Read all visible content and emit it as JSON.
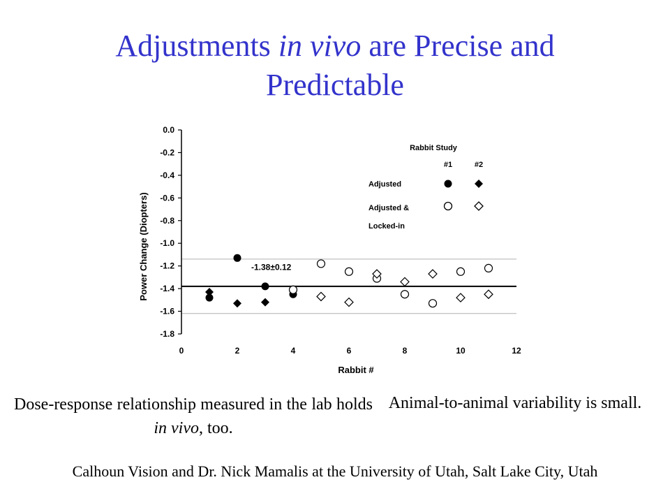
{
  "slide": {
    "title_part1": "Adjustments ",
    "title_italic": "in vivo",
    "title_part2": " are Precise and",
    "title_line2": "Predictable",
    "caption_left_part1": "Dose-response relationship measured in the lab holds ",
    "caption_left_italic": "in vivo",
    "caption_left_part2": ", too.",
    "caption_right": "Animal-to-animal variability is small.",
    "credit": "Calhoun Vision and Dr. Nick Mamalis at the University of Utah, Salt Lake City, Utah"
  },
  "chart_data": {
    "type": "scatter",
    "xlabel": "Rabbit #",
    "ylabel": "Power Change (Diopters)",
    "xlim": [
      0,
      12
    ],
    "ylim": [
      -1.8,
      0.0
    ],
    "x_ticks": [
      0,
      2,
      4,
      6,
      8,
      10,
      12
    ],
    "y_ticks": [
      "0.0",
      "-0.2",
      "-0.4",
      "-0.6",
      "-0.8",
      "-1.0",
      "-1.2",
      "-1.4",
      "-1.6",
      "-1.8"
    ],
    "grid": false,
    "mean_line": -1.38,
    "band_lines": [
      -1.14,
      -1.62
    ],
    "annotation": "-1.38±0.12",
    "legend": {
      "header": "Rabbit Study",
      "col1": "#1",
      "col2": "#2",
      "row1_label": "Adjusted",
      "row2_label_line1": "Adjusted &",
      "row2_label_line2": "Locked-in"
    },
    "series": [
      {
        "marker": "filled-circle",
        "points": [
          [
            1,
            -1.48
          ],
          [
            2,
            -1.13
          ],
          [
            3,
            -1.38
          ],
          [
            4,
            -1.45
          ]
        ]
      },
      {
        "marker": "filled-diamond",
        "points": [
          [
            1,
            -1.43
          ],
          [
            2,
            -1.53
          ],
          [
            3,
            -1.52
          ]
        ]
      },
      {
        "marker": "open-circle",
        "points": [
          [
            4,
            -1.41
          ],
          [
            5,
            -1.18
          ],
          [
            6,
            -1.25
          ],
          [
            7,
            -1.31
          ],
          [
            8,
            -1.45
          ],
          [
            9,
            -1.53
          ],
          [
            10,
            -1.25
          ],
          [
            11,
            -1.22
          ]
        ]
      },
      {
        "marker": "open-diamond",
        "points": [
          [
            5,
            -1.47
          ],
          [
            6,
            -1.52
          ],
          [
            7,
            -1.27
          ],
          [
            8,
            -1.34
          ],
          [
            9,
            -1.27
          ],
          [
            10,
            -1.48
          ],
          [
            11,
            -1.45
          ]
        ]
      }
    ]
  }
}
